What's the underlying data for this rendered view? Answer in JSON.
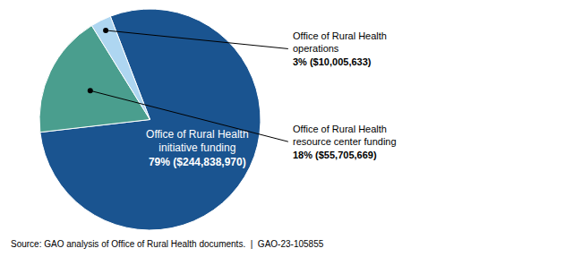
{
  "chart_data": {
    "type": "pie",
    "categories": [
      "Office of Rural Health\ninitiative funding",
      "Office of Rural Health\nresource center funding",
      "Office of Rural Health\noperations"
    ],
    "values": [
      79,
      18,
      3
    ],
    "value_labels": [
      "79% ($244,838,970)",
      "18% ($55,705,669)",
      "3% ($10,005,633)"
    ],
    "colors": [
      "#1a5490",
      "#4a9e8e",
      "#aed6f1"
    ],
    "data_labels": true,
    "annotations": [
      "Source: GAO analysis of Office of Rural Health documents.  |  GAO-23-105855"
    ]
  }
}
